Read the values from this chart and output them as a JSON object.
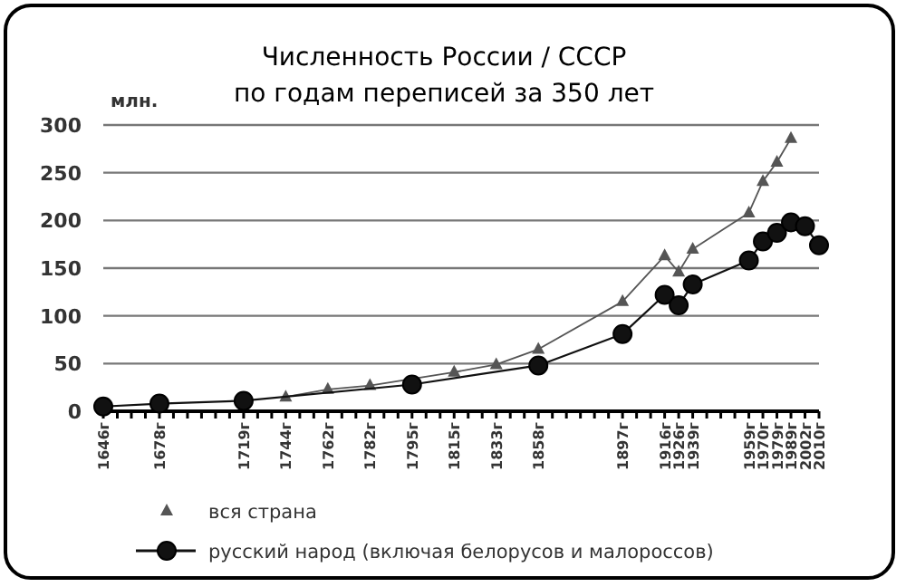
{
  "chart_data": {
    "type": "line",
    "title": "Численность России / СССР",
    "subtitle": "по годам переписей за 350 лет",
    "ylabel": "млн.",
    "categories": [
      "1646г",
      null,
      null,
      null,
      "1678г",
      null,
      null,
      null,
      null,
      null,
      "1719г",
      null,
      null,
      "1744г",
      null,
      null,
      "1762г",
      null,
      null,
      "1782г",
      null,
      null,
      "1795г",
      null,
      null,
      "1815г",
      null,
      null,
      "1833г",
      null,
      null,
      "1858г",
      null,
      null,
      null,
      null,
      null,
      "1897г",
      null,
      null,
      "1916г",
      "1926г",
      "1939г",
      null,
      null,
      null,
      "1959г",
      "1970г",
      "1979г",
      "1989г",
      "2002г",
      "2010г"
    ],
    "series": [
      {
        "name": "вся страна",
        "color": "#555555",
        "marker": "triangle",
        "values": [
          null,
          null,
          null,
          null,
          null,
          null,
          null,
          null,
          null,
          null,
          null,
          null,
          null,
          15,
          null,
          null,
          23,
          null,
          null,
          27,
          null,
          null,
          null,
          null,
          null,
          41,
          null,
          null,
          49,
          null,
          null,
          65,
          null,
          null,
          null,
          null,
          null,
          115,
          null,
          null,
          163,
          146,
          170,
          null,
          null,
          null,
          208,
          241,
          261,
          286,
          null,
          null
        ]
      },
      {
        "name": "русский народ (включая белорусов и малороссов)",
        "color": "#111111",
        "marker": "circle",
        "values": [
          5,
          null,
          null,
          null,
          8,
          null,
          null,
          null,
          null,
          null,
          11,
          null,
          null,
          null,
          null,
          null,
          null,
          null,
          null,
          null,
          null,
          null,
          28,
          null,
          null,
          null,
          null,
          null,
          null,
          null,
          null,
          48,
          null,
          null,
          null,
          null,
          null,
          81,
          null,
          null,
          122,
          111,
          133,
          null,
          null,
          null,
          158,
          178,
          187,
          198,
          194,
          174
        ]
      }
    ],
    "ylim": [
      0,
      300
    ],
    "yticks": [
      0,
      50,
      100,
      150,
      200,
      250,
      300
    ],
    "grid": "y",
    "legend": "bottom"
  }
}
